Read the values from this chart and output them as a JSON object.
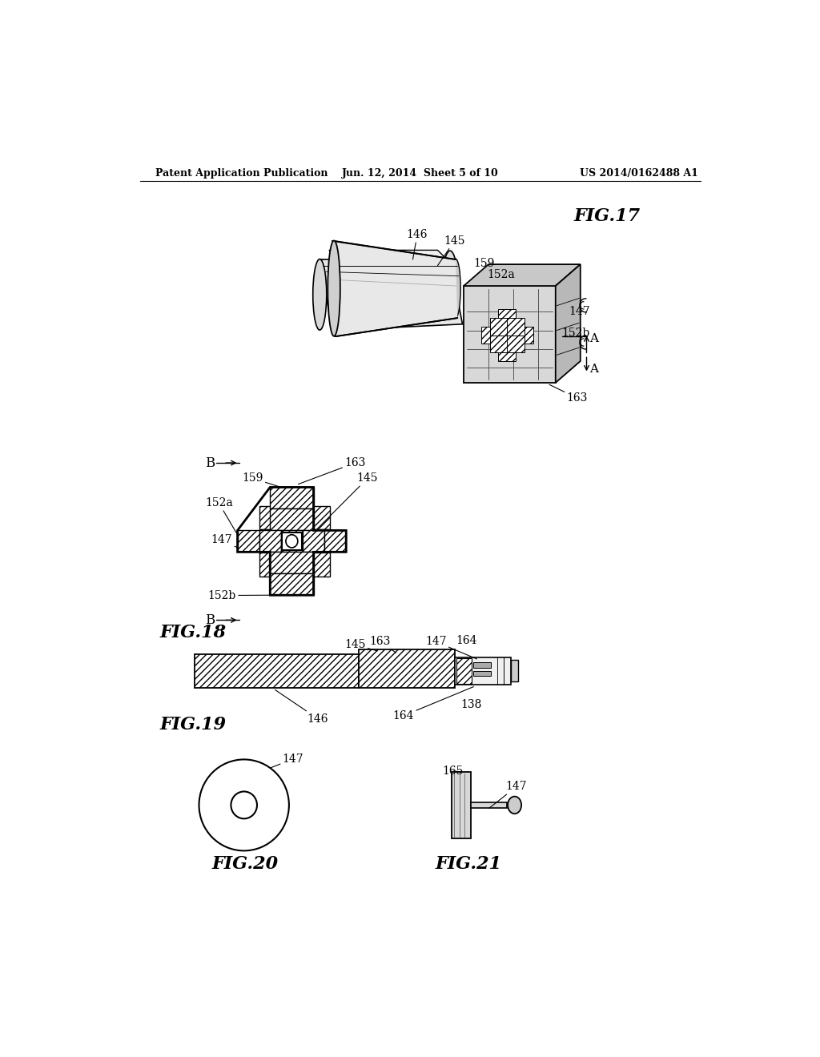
{
  "header_left": "Patent Application Publication",
  "header_center": "Jun. 12, 2014  Sheet 5 of 10",
  "header_right": "US 2014/0162488 A1",
  "fig17_label": "FIG.17",
  "fig18_label": "FIG.18",
  "fig19_label": "FIG.19",
  "fig20_label": "FIG.20",
  "fig21_label": "FIG.21",
  "bg_color": "#ffffff",
  "line_color": "#000000",
  "line_width": 1.2
}
